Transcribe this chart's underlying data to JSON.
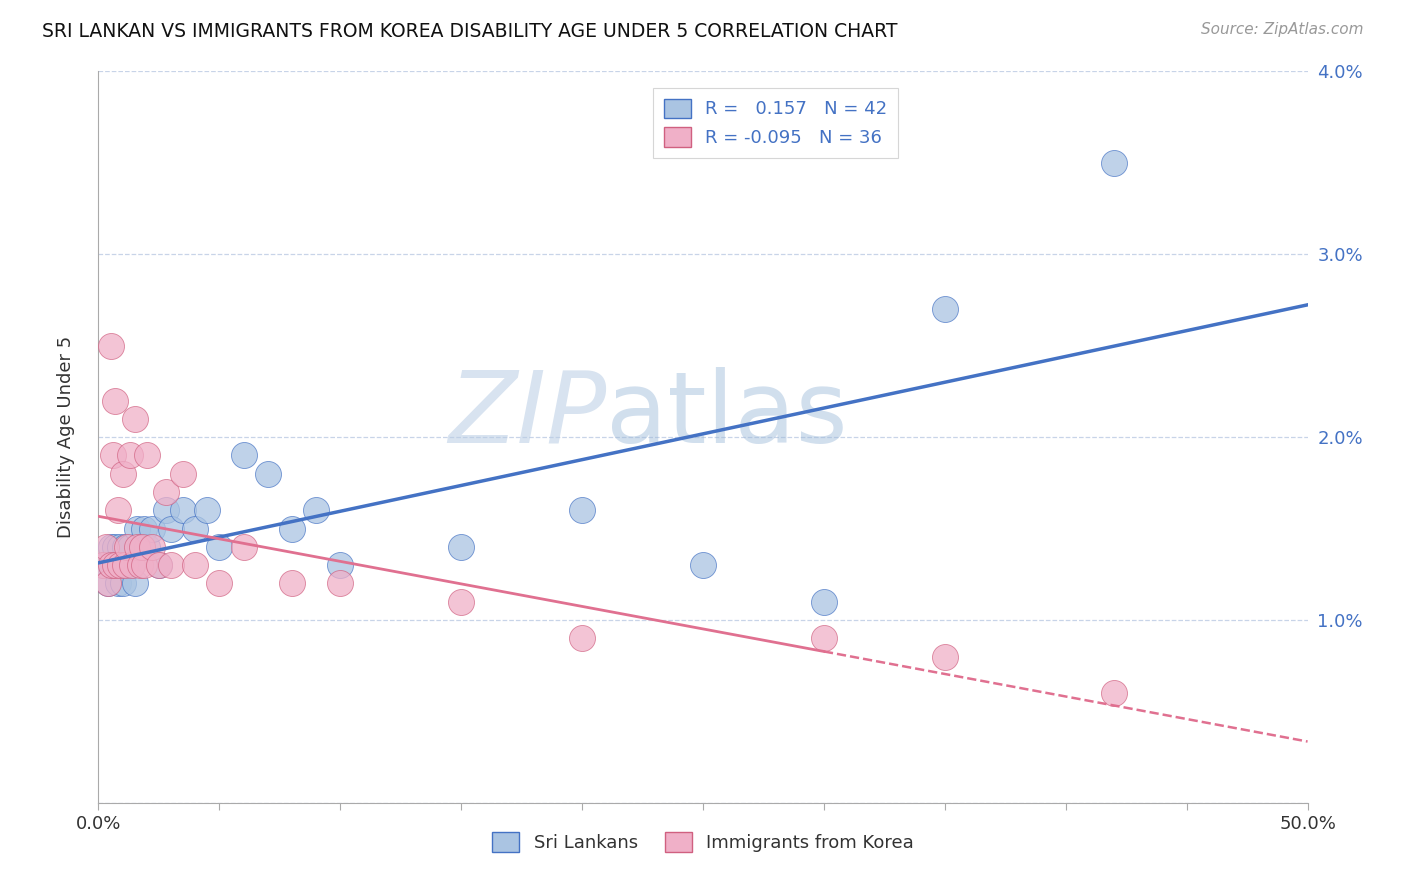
{
  "title": "SRI LANKAN VS IMMIGRANTS FROM KOREA DISABILITY AGE UNDER 5 CORRELATION CHART",
  "source": "Source: ZipAtlas.com",
  "ylabel": "Disability Age Under 5",
  "xmin": 0.0,
  "xmax": 0.5,
  "ymin": 0.0,
  "ymax": 0.04,
  "xticks": [
    0.0,
    0.05,
    0.1,
    0.15,
    0.2,
    0.25,
    0.3,
    0.35,
    0.4,
    0.45,
    0.5
  ],
  "yticks": [
    0.0,
    0.01,
    0.02,
    0.03,
    0.04
  ],
  "legend1_label": "R =   0.157   N = 42",
  "legend2_label": "R = -0.095   N = 36",
  "sri_lanka_color": "#aac4e2",
  "korea_color": "#f0b0c8",
  "sri_lanka_line_color": "#4472c4",
  "korea_line_color": "#e07090",
  "watermark_zip": "ZIP",
  "watermark_atlas": "atlas",
  "sri_lankans": [
    [
      0.002,
      0.013
    ],
    [
      0.003,
      0.013
    ],
    [
      0.004,
      0.012
    ],
    [
      0.005,
      0.014
    ],
    [
      0.005,
      0.013
    ],
    [
      0.006,
      0.013
    ],
    [
      0.007,
      0.014
    ],
    [
      0.007,
      0.013
    ],
    [
      0.008,
      0.012
    ],
    [
      0.008,
      0.013
    ],
    [
      0.009,
      0.014
    ],
    [
      0.01,
      0.013
    ],
    [
      0.01,
      0.012
    ],
    [
      0.011,
      0.014
    ],
    [
      0.012,
      0.013
    ],
    [
      0.013,
      0.014
    ],
    [
      0.014,
      0.013
    ],
    [
      0.015,
      0.012
    ],
    [
      0.016,
      0.015
    ],
    [
      0.017,
      0.014
    ],
    [
      0.018,
      0.014
    ],
    [
      0.019,
      0.015
    ],
    [
      0.02,
      0.014
    ],
    [
      0.022,
      0.015
    ],
    [
      0.025,
      0.013
    ],
    [
      0.028,
      0.016
    ],
    [
      0.03,
      0.015
    ],
    [
      0.035,
      0.016
    ],
    [
      0.04,
      0.015
    ],
    [
      0.045,
      0.016
    ],
    [
      0.05,
      0.014
    ],
    [
      0.06,
      0.019
    ],
    [
      0.07,
      0.018
    ],
    [
      0.08,
      0.015
    ],
    [
      0.09,
      0.016
    ],
    [
      0.1,
      0.013
    ],
    [
      0.15,
      0.014
    ],
    [
      0.2,
      0.016
    ],
    [
      0.25,
      0.013
    ],
    [
      0.3,
      0.011
    ],
    [
      0.35,
      0.027
    ],
    [
      0.42,
      0.035
    ]
  ],
  "korea": [
    [
      0.002,
      0.013
    ],
    [
      0.003,
      0.014
    ],
    [
      0.004,
      0.012
    ],
    [
      0.005,
      0.013
    ],
    [
      0.005,
      0.025
    ],
    [
      0.006,
      0.019
    ],
    [
      0.007,
      0.013
    ],
    [
      0.007,
      0.022
    ],
    [
      0.008,
      0.016
    ],
    [
      0.009,
      0.013
    ],
    [
      0.01,
      0.018
    ],
    [
      0.011,
      0.013
    ],
    [
      0.012,
      0.014
    ],
    [
      0.013,
      0.019
    ],
    [
      0.014,
      0.013
    ],
    [
      0.015,
      0.021
    ],
    [
      0.016,
      0.014
    ],
    [
      0.017,
      0.013
    ],
    [
      0.018,
      0.014
    ],
    [
      0.019,
      0.013
    ],
    [
      0.02,
      0.019
    ],
    [
      0.022,
      0.014
    ],
    [
      0.025,
      0.013
    ],
    [
      0.028,
      0.017
    ],
    [
      0.03,
      0.013
    ],
    [
      0.035,
      0.018
    ],
    [
      0.04,
      0.013
    ],
    [
      0.05,
      0.012
    ],
    [
      0.06,
      0.014
    ],
    [
      0.08,
      0.012
    ],
    [
      0.1,
      0.012
    ],
    [
      0.15,
      0.011
    ],
    [
      0.2,
      0.009
    ],
    [
      0.3,
      0.009
    ],
    [
      0.35,
      0.008
    ],
    [
      0.42,
      0.006
    ]
  ]
}
